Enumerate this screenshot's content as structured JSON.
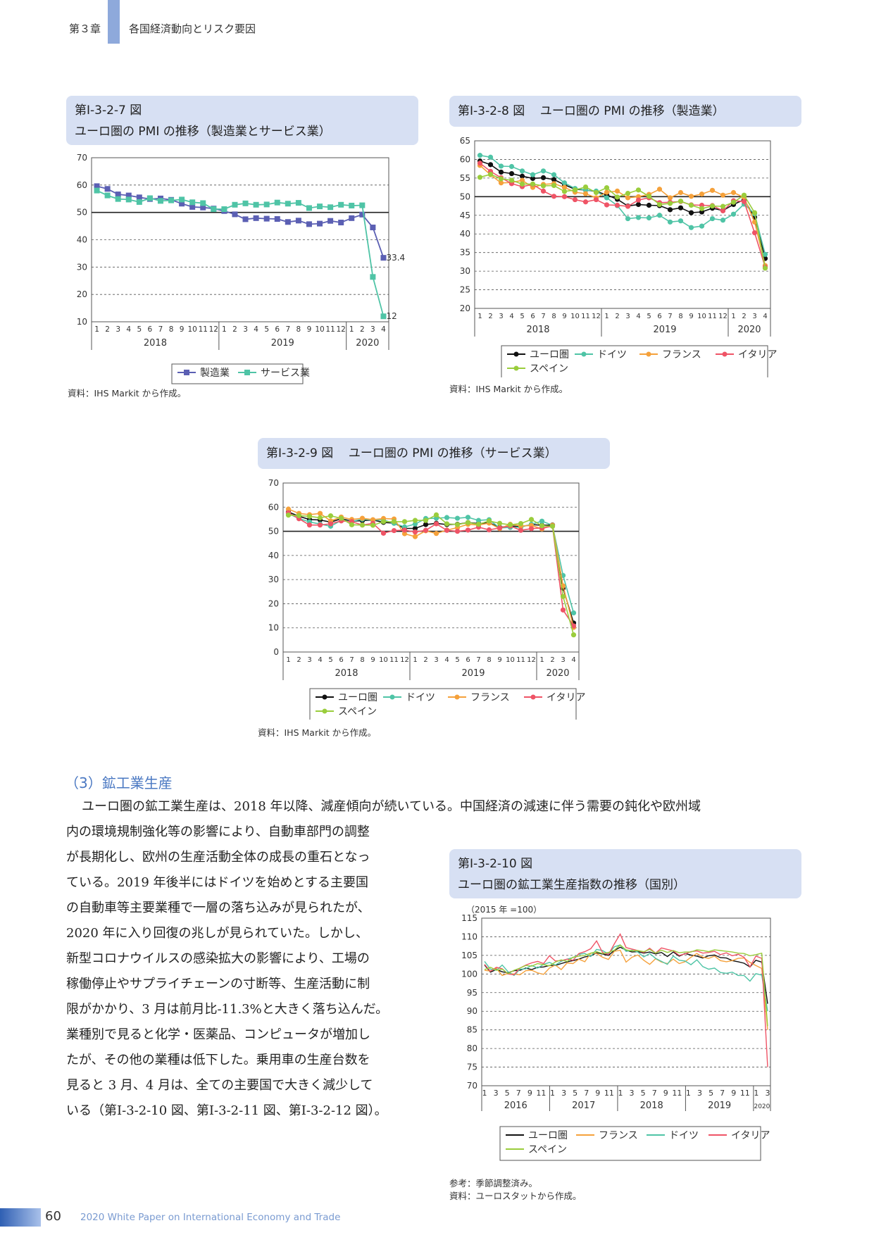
{
  "header": {
    "chapter": "第３章",
    "title": "各国経済動向とリスク要因",
    "accent": "#8ea9db"
  },
  "figures": [
    {
      "id": "fig7",
      "label": "第Ⅰ-3-2-7 図",
      "title": "ユーロ圏の PMI の推移（製造業とサービス業）",
      "source": "資料：IHS Markit から作成。"
    },
    {
      "id": "fig8",
      "label": "第Ⅰ-3-2-8 図",
      "title": "ユーロ圏の PMI の推移（製造業）",
      "source": "資料：IHS Markit から作成。"
    },
    {
      "id": "fig9",
      "label": "第Ⅰ-3-2-9 図",
      "title": "ユーロ圏の PMI の推移（サービス業）",
      "source": "資料：IHS Markit から作成。"
    },
    {
      "id": "fig10",
      "label": "第Ⅰ-3-2-10 図",
      "title": "ユーロ圏の鉱工業生産指数の推移（国別）",
      "note": "参考：季節調整済み。",
      "source": "資料：ユーロスタットから作成。"
    }
  ],
  "section": {
    "title": "（3）鉱工業生産",
    "first_line": "ユーロ圏の鉱工業生産は、2018 年以降、減産傾向が続いている。中国経済の減速に伴う需要の鈍化や欧州域",
    "lines": [
      "内の環境規制強化等の影響により、自動車部門の調整",
      "が長期化し、欧州の生産活動全体の成長の重石となっ",
      "ている。2019 年後半にはドイツを始めとする主要国",
      "の自動車等主要業種で一層の落ち込みが見られたが、",
      "2020 年に入り回復の兆しが見られていた。しかし、",
      "新型コロナウイルスの感染拡大の影響により、工場の",
      "稼働停止やサプライチェーンの寸断等、生産活動に制",
      "限がかかり、3 月は前月比-11.3%と大きく落ち込んだ。",
      "業種別で見ると化学・医薬品、コンピュータが増加し",
      "たが、その他の業種は低下した。乗用車の生産台数を",
      "見ると 3 月、4 月は、全ての主要国で大きく減少して",
      "いる（第Ⅰ-3-2-10 図、第Ⅰ-3-2-11 図、第Ⅰ-3-2-12 図）。"
    ]
  },
  "footer": {
    "page": "60",
    "title": "2020 White Paper on International Economy and Trade"
  },
  "chart_data": [
    {
      "id": "fig7",
      "type": "line",
      "x_labels": [
        "1",
        "2",
        "3",
        "4",
        "5",
        "6",
        "7",
        "8",
        "9",
        "10",
        "11",
        "12",
        "1",
        "2",
        "3",
        "4",
        "5",
        "6",
        "7",
        "8",
        "9",
        "10",
        "11",
        "12",
        "1",
        "2",
        "3",
        "4"
      ],
      "years": [
        "2018",
        "2019",
        "2020"
      ],
      "ylim": [
        10,
        70
      ],
      "yticks": [
        10,
        20,
        30,
        40,
        50,
        60,
        70
      ],
      "reference_line": 50,
      "series": [
        {
          "name": "製造業",
          "color": "#5b5fb3",
          "marker": "square",
          "values": [
            59.6,
            58.6,
            56.6,
            56.2,
            55.5,
            54.9,
            55.1,
            54.6,
            53.2,
            52.0,
            51.8,
            51.4,
            50.5,
            49.3,
            47.5,
            47.9,
            47.7,
            47.6,
            46.5,
            47.0,
            45.7,
            45.9,
            46.9,
            46.3,
            47.9,
            49.2,
            44.5,
            33.4
          ]
        },
        {
          "name": "サービス業",
          "color": "#4fc4a6",
          "marker": "square",
          "values": [
            58.0,
            56.2,
            54.9,
            54.7,
            53.8,
            55.2,
            54.2,
            54.4,
            54.7,
            53.7,
            53.4,
            51.2,
            51.2,
            52.8,
            53.3,
            52.8,
            52.9,
            53.6,
            53.2,
            53.5,
            51.6,
            52.2,
            51.9,
            52.8,
            52.5,
            52.6,
            26.4,
            12.0
          ]
        }
      ],
      "annotations": [
        "33.4",
        "12"
      ]
    },
    {
      "id": "fig8",
      "type": "line",
      "x_labels": [
        "1",
        "2",
        "3",
        "4",
        "5",
        "6",
        "7",
        "8",
        "9",
        "10",
        "11",
        "12",
        "1",
        "2",
        "3",
        "4",
        "5",
        "6",
        "7",
        "8",
        "9",
        "10",
        "11",
        "12",
        "1",
        "2",
        "3",
        "4"
      ],
      "years": [
        "2018",
        "2019",
        "2020"
      ],
      "ylim": [
        20,
        65
      ],
      "yticks": [
        20,
        25,
        30,
        35,
        40,
        45,
        50,
        55,
        60,
        65
      ],
      "reference_line": 50,
      "series": [
        {
          "name": "ユーロ圏",
          "color": "#111111",
          "values": [
            59.6,
            58.6,
            56.6,
            56.2,
            55.5,
            54.9,
            55.1,
            54.6,
            53.2,
            52.0,
            51.8,
            51.4,
            50.5,
            49.3,
            47.5,
            47.9,
            47.7,
            47.6,
            46.5,
            47.0,
            45.7,
            45.9,
            46.9,
            46.3,
            47.9,
            49.2,
            44.5,
            33.4
          ]
        },
        {
          "name": "ドイツ",
          "color": "#4fc4a6",
          "values": [
            61.1,
            60.6,
            58.2,
            58.1,
            56.9,
            55.9,
            56.9,
            55.9,
            53.7,
            52.2,
            51.8,
            51.5,
            49.7,
            47.6,
            44.1,
            44.4,
            44.3,
            45.0,
            43.2,
            43.5,
            41.7,
            42.1,
            44.1,
            43.7,
            45.3,
            48.0,
            45.4,
            34.5
          ]
        },
        {
          "name": "フランス",
          "color": "#f5a13b",
          "values": [
            58.4,
            55.9,
            53.7,
            53.8,
            54.4,
            52.5,
            53.3,
            53.5,
            52.5,
            51.2,
            50.8,
            49.7,
            51.2,
            51.5,
            49.7,
            50.0,
            50.6,
            52.0,
            49.7,
            51.1,
            50.1,
            50.7,
            51.7,
            50.4,
            51.1,
            49.8,
            43.2,
            31.5
          ]
        },
        {
          "name": "イタリア",
          "color": "#ef5466",
          "values": [
            59.0,
            56.8,
            55.1,
            53.5,
            52.7,
            53.3,
            51.5,
            50.1,
            50.0,
            49.2,
            48.6,
            49.2,
            47.8,
            47.7,
            47.4,
            49.1,
            49.7,
            48.4,
            48.5,
            48.7,
            47.8,
            47.7,
            47.6,
            46.2,
            48.9,
            48.7,
            40.3,
            31.1
          ]
        },
        {
          "name": "スペイン",
          "color": "#9acd3c",
          "values": [
            55.2,
            56.0,
            54.8,
            54.4,
            53.4,
            53.4,
            52.9,
            53.0,
            51.4,
            51.8,
            52.6,
            51.1,
            52.4,
            49.9,
            50.9,
            51.8,
            50.1,
            47.9,
            48.2,
            48.8,
            47.7,
            46.8,
            47.5,
            47.4,
            48.5,
            50.4,
            45.7,
            30.8
          ]
        }
      ]
    },
    {
      "id": "fig9",
      "type": "line",
      "x_labels": [
        "1",
        "2",
        "3",
        "4",
        "5",
        "6",
        "7",
        "8",
        "9",
        "10",
        "11",
        "12",
        "1",
        "2",
        "3",
        "4",
        "5",
        "6",
        "7",
        "8",
        "9",
        "10",
        "11",
        "12",
        "1",
        "2",
        "3",
        "4"
      ],
      "years": [
        "2018",
        "2019",
        "2020"
      ],
      "ylim": [
        0,
        70
      ],
      "yticks": [
        0,
        10,
        20,
        30,
        40,
        50,
        60,
        70
      ],
      "reference_line": 50,
      "series": [
        {
          "name": "ユーロ圏",
          "color": "#111111",
          "values": [
            58.0,
            56.2,
            54.9,
            54.7,
            53.8,
            55.2,
            54.2,
            54.4,
            54.7,
            53.7,
            53.4,
            51.2,
            51.2,
            52.8,
            53.3,
            52.8,
            52.9,
            53.6,
            53.2,
            53.5,
            51.6,
            52.2,
            51.9,
            52.8,
            52.5,
            52.6,
            26.4,
            12.0
          ]
        },
        {
          "name": "ドイツ",
          "color": "#4fc4a6",
          "values": [
            57.3,
            55.3,
            53.9,
            53.0,
            52.1,
            54.5,
            54.1,
            55.0,
            54.7,
            54.7,
            53.3,
            51.8,
            53.0,
            55.3,
            55.4,
            55.7,
            55.4,
            55.8,
            54.5,
            54.8,
            51.4,
            51.6,
            51.7,
            52.9,
            54.2,
            52.5,
            31.7,
            16.2
          ]
        },
        {
          "name": "フランス",
          "color": "#f5a13b",
          "values": [
            59.2,
            57.4,
            56.9,
            57.4,
            54.3,
            55.9,
            54.9,
            55.4,
            54.8,
            55.3,
            55.1,
            49.0,
            47.8,
            50.2,
            49.1,
            50.5,
            51.5,
            52.9,
            52.6,
            53.4,
            51.1,
            52.9,
            52.2,
            52.4,
            51.0,
            52.5,
            27.4,
            10.2
          ]
        },
        {
          "name": "イタリア",
          "color": "#ef5466",
          "values": [
            57.7,
            55.2,
            52.6,
            52.6,
            53.1,
            54.3,
            54.0,
            52.6,
            53.3,
            49.2,
            50.3,
            50.5,
            49.7,
            50.4,
            53.1,
            50.4,
            50.0,
            50.5,
            51.7,
            50.6,
            51.4,
            52.2,
            50.4,
            51.1,
            51.4,
            52.1,
            17.4,
            10.8
          ]
        },
        {
          "name": "スペイン",
          "color": "#9acd3c",
          "values": [
            56.7,
            56.5,
            56.2,
            55.6,
            56.4,
            55.4,
            52.7,
            52.6,
            52.5,
            54.0,
            54.0,
            54.0,
            54.5,
            54.5,
            56.8,
            53.1,
            52.8,
            53.6,
            52.9,
            54.3,
            53.3,
            52.7,
            53.2,
            54.9,
            52.3,
            52.1,
            23.0,
            7.1
          ]
        }
      ]
    },
    {
      "id": "fig10",
      "type": "line",
      "ylabel": "（2015 年 =100）",
      "x_labels": [
        "1",
        "3",
        "5",
        "7",
        "9",
        "11",
        "1",
        "3",
        "5",
        "7",
        "9",
        "11",
        "1",
        "3",
        "5",
        "7",
        "9",
        "11",
        "1",
        "3",
        "5",
        "7",
        "9",
        "11",
        "1",
        "3"
      ],
      "years": [
        "2016",
        "2017",
        "2018",
        "2019",
        "2020"
      ],
      "ylim": [
        70,
        115
      ],
      "yticks": [
        70,
        75,
        80,
        85,
        90,
        95,
        100,
        105,
        110,
        115
      ],
      "series": [
        {
          "name": "ユーロ圏",
          "color": "#111111",
          "values": [
            102.4,
            100.5,
            101.2,
            100.6,
            100.3,
            100.9,
            101.0,
            101.6,
            101.2,
            101.8,
            101.9,
            102.3,
            102.3,
            102.8,
            103.3,
            103.6,
            104.0,
            104.6,
            104.9,
            105.7,
            105.4,
            105.0,
            106.3,
            107.2,
            106.4,
            105.9,
            106.0,
            105.6,
            105.9,
            105.4,
            105.8,
            104.7,
            105.9,
            104.8,
            105.5,
            105.1,
            104.8,
            104.3,
            104.9,
            105.1,
            104.4,
            104.3,
            103.6,
            103.3,
            102.9,
            101.9,
            103.7,
            103.2,
            92.0
          ]
        },
        {
          "name": "フランス",
          "color": "#f5a13b",
          "values": [
            101.0,
            100.8,
            101.5,
            99.6,
            100.2,
            100.0,
            99.8,
            100.9,
            101.0,
            100.3,
            99.9,
            101.6,
            102.4,
            101.2,
            103.0,
            102.8,
            104.0,
            103.3,
            105.6,
            105.5,
            104.5,
            103.9,
            106.1,
            106.4,
            103.2,
            104.5,
            105.1,
            103.7,
            102.6,
            104.1,
            103.2,
            102.8,
            104.0,
            102.8,
            103.3,
            104.5,
            105.5,
            104.5,
            104.2,
            104.8,
            103.6,
            103.3,
            103.6,
            104.2,
            104.3,
            103.1,
            102.3,
            101.5,
            85.0
          ]
        },
        {
          "name": "ドイツ",
          "color": "#4fc4a6",
          "values": [
            103.4,
            101.3,
            101.0,
            102.4,
            100.6,
            99.6,
            101.3,
            101.4,
            102.3,
            101.6,
            102.6,
            103.1,
            102.4,
            103.4,
            104.0,
            104.4,
            105.3,
            105.5,
            104.7,
            106.6,
            106.3,
            105.4,
            107.3,
            107.8,
            106.1,
            106.4,
            105.9,
            104.6,
            105.5,
            104.2,
            103.4,
            102.6,
            104.8,
            103.7,
            103.5,
            102.5,
            103.8,
            102.0,
            101.3,
            101.6,
            100.4,
            100.2,
            100.5,
            99.6,
            99.6,
            98.1,
            100.1,
            99.7,
            90.0
          ]
        },
        {
          "name": "イタリア",
          "color": "#ef5466",
          "values": [
            102.6,
            100.7,
            101.8,
            101.4,
            100.0,
            99.8,
            101.6,
            102.4,
            103.0,
            103.4,
            102.8,
            104.9,
            103.5,
            103.6,
            104.0,
            103.7,
            105.5,
            106.0,
            106.8,
            108.9,
            105.8,
            105.2,
            108.1,
            110.7,
            107.1,
            106.7,
            106.3,
            105.8,
            106.9,
            105.6,
            107.0,
            106.6,
            106.2,
            105.0,
            105.4,
            106.0,
            106.2,
            105.6,
            105.8,
            106.1,
            105.2,
            105.7,
            104.9,
            105.3,
            104.5,
            101.9,
            104.8,
            104.2,
            75.0
          ]
        },
        {
          "name": "スペイン",
          "color": "#9acd3c",
          "values": [
            101.2,
            101.8,
            101.0,
            101.3,
            100.1,
            101.0,
            101.6,
            102.3,
            102.1,
            102.8,
            102.5,
            102.2,
            103.2,
            103.8,
            103.4,
            104.5,
            104.8,
            105.0,
            105.6,
            106.0,
            105.5,
            105.8,
            106.4,
            107.8,
            106.5,
            106.2,
            106.3,
            106.0,
            106.6,
            105.6,
            106.4,
            105.8,
            106.3,
            105.7,
            105.9,
            105.9,
            106.5,
            106.3,
            106.0,
            106.5,
            106.3,
            106.1,
            105.9,
            105.6,
            105.5,
            104.9,
            105.2,
            105.6,
            86.0
          ]
        }
      ]
    }
  ]
}
